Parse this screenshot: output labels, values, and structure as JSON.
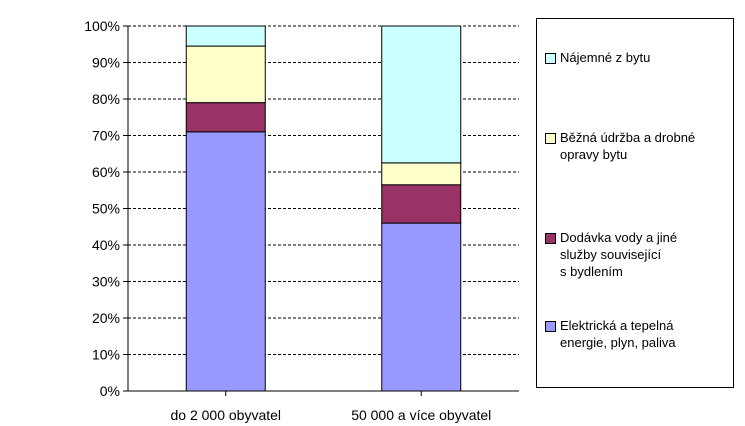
{
  "chart_data": {
    "type": "bar",
    "stacked": true,
    "categories": [
      "do 2 000 obyvatel",
      "50 000 a více obyvatel"
    ],
    "series": [
      {
        "name": "Elektrická a tepelná energie, plyn, paliva",
        "color": "#9999ff",
        "values": [
          71,
          46
        ]
      },
      {
        "name": "Dodávka vody a jiné služby související s bydlením",
        "color": "#993366",
        "values": [
          8,
          10.5
        ]
      },
      {
        "name": "Běžná údržba a drobné opravy bytu",
        "color": "#ffffcc",
        "values": [
          15.5,
          6
        ]
      },
      {
        "name": "Nájemné z bytu",
        "color": "#ccffff",
        "values": [
          5.5,
          37.5
        ]
      }
    ],
    "y_ticks": [
      "0%",
      "10%",
      "20%",
      "30%",
      "40%",
      "50%",
      "60%",
      "70%",
      "80%",
      "90%",
      "100%"
    ],
    "ylim": [
      0,
      100
    ],
    "grid": "horizontal dashed",
    "legend": {
      "position": "right",
      "items": [
        {
          "series": 3,
          "lines": [
            "Nájemné z bytu"
          ]
        },
        {
          "series": 2,
          "lines": [
            "Běžná údržba a drobné",
            "opravy bytu"
          ]
        },
        {
          "series": 1,
          "lines": [
            "Dodávka vody a jiné",
            "služby související",
            "s bydlením"
          ]
        },
        {
          "series": 0,
          "lines": [
            "Elektrická a tepelná",
            "energie, plyn, paliva"
          ]
        }
      ]
    },
    "title": "",
    "xlabel": "",
    "ylabel": ""
  }
}
